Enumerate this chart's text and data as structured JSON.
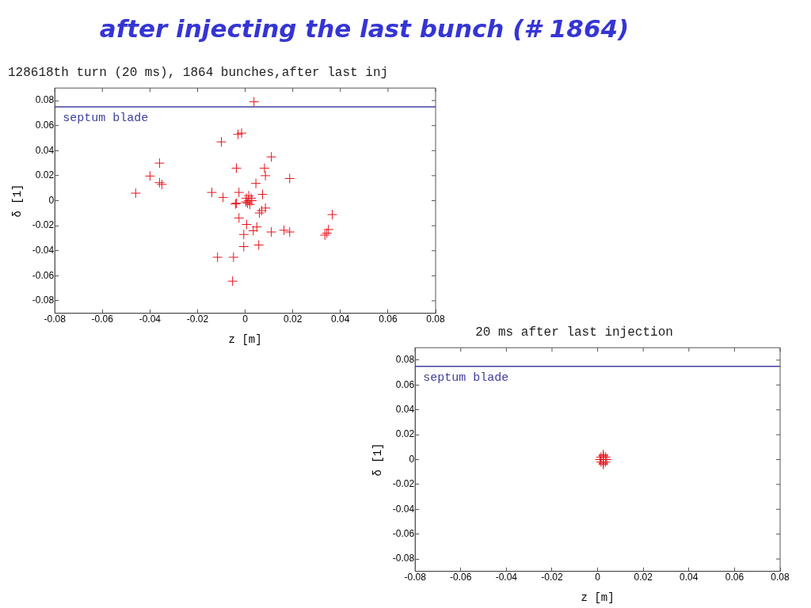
{
  "chart_data": [
    {
      "type": "scatter",
      "title": "after injecting the last bunch (# 1864)",
      "subtitle": "128618th turn (20 ms), 1864 bunches,after last inj",
      "xlabel": "z [m]",
      "ylabel": "δ [1]",
      "x": [
        0.0037,
        -0.01,
        -0.003,
        -0.0015,
        0.011,
        -0.036,
        -0.0037,
        0.0081,
        0.0085,
        0.0187,
        -0.04,
        -0.036,
        -0.035,
        -0.046,
        -0.014,
        -0.0093,
        0.0045,
        -0.0026,
        0.0073,
        -0.0037,
        0.0366,
        -0.0026,
        0.0006,
        0.0049,
        -0.0006,
        0.0034,
        0.011,
        0.0163,
        0.0187,
        0.035,
        0.0343,
        0.0335,
        -0.0006,
        0.0057,
        -0.0116,
        -0.0049,
        -0.0053,
        -0.0041,
        0.0085,
        0.0069,
        0.006,
        0.0015,
        0.0005,
        0.0025,
        0.001,
        0.002,
        0.0015,
        0.0003,
        0.0028
      ],
      "values": [
        0.079,
        0.047,
        0.053,
        0.054,
        0.035,
        0.03,
        0.026,
        0.026,
        0.02,
        0.0177,
        0.0197,
        0.0144,
        0.013,
        0.006,
        0.0066,
        0.0026,
        0.0138,
        0.0066,
        0.005,
        -0.002,
        -0.0111,
        -0.0138,
        -0.019,
        -0.021,
        -0.027,
        -0.024,
        -0.025,
        -0.0236,
        -0.025,
        -0.023,
        -0.026,
        -0.0275,
        -0.0367,
        -0.0354,
        -0.0452,
        -0.0452,
        -0.0643,
        -0.0026,
        -0.0059,
        -0.0079,
        -0.0098,
        0.0,
        0.002,
        0.002,
        -0.002,
        -0.003,
        0.004,
        -0.001,
        0.0
      ],
      "color": "#e8141c",
      "marker": "cross",
      "xlim": [
        -0.08,
        0.08
      ],
      "xticks": [
        -0.08,
        -0.06,
        -0.04,
        -0.02,
        0,
        0.02,
        0.04,
        0.06,
        0.08
      ],
      "ylim": [
        -0.09,
        0.09
      ],
      "yticks": [
        -0.08,
        -0.06,
        -0.04,
        -0.02,
        0,
        0.02,
        0.04,
        0.06,
        0.08
      ],
      "ref_lines": [
        {
          "axis": "y",
          "value": 0.075,
          "label": "septum blade",
          "color": "#4040a0"
        }
      ],
      "grid": false,
      "legend": false
    },
    {
      "type": "scatter",
      "title": "20 ms after last injection",
      "xlabel": "z [m]",
      "ylabel": "δ [1]",
      "x": [
        0.0025,
        0.0025,
        0.0025,
        0.001,
        0.004,
        0.0015,
        0.0035,
        0.0015,
        0.0035,
        0.0025,
        0.0025
      ],
      "values": [
        0.0,
        0.003,
        -0.003,
        0.0,
        0.0,
        0.002,
        0.002,
        -0.002,
        -0.002,
        0.004,
        -0.004
      ],
      "color": "#e8141c",
      "marker": "cross",
      "xlim": [
        -0.08,
        0.08
      ],
      "xticks": [
        -0.08,
        -0.06,
        -0.04,
        -0.02,
        0,
        0.02,
        0.04,
        0.06,
        0.08
      ],
      "ylim": [
        -0.09,
        0.09
      ],
      "yticks": [
        -0.08,
        -0.06,
        -0.04,
        -0.02,
        0,
        0.02,
        0.04,
        0.06,
        0.08
      ],
      "ref_lines": [
        {
          "axis": "y",
          "value": 0.075,
          "label": "septum blade",
          "color": "#4040a0"
        }
      ],
      "grid": false,
      "legend": false
    }
  ]
}
